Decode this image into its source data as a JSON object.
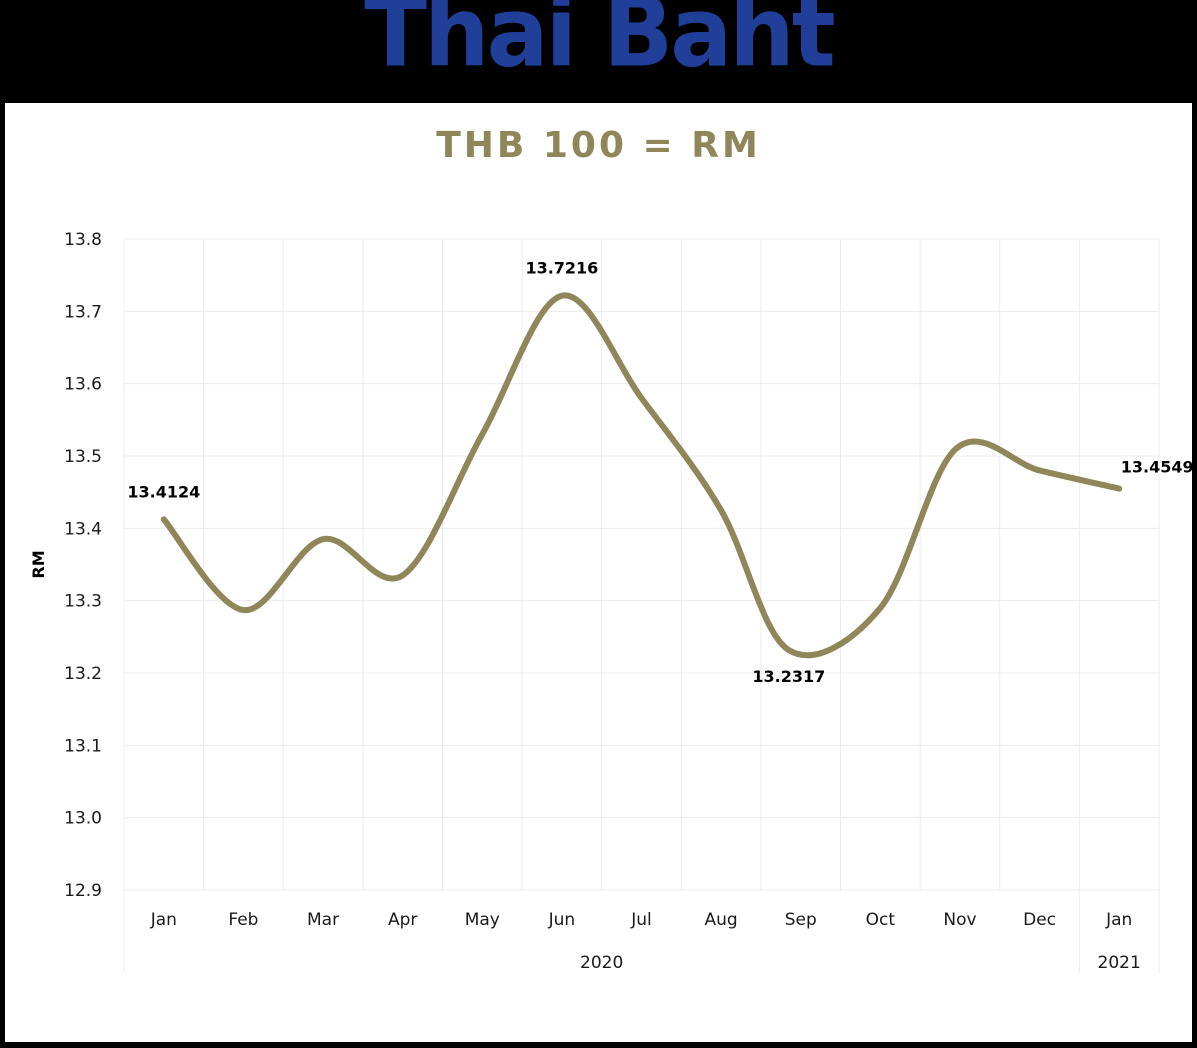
{
  "banner": {
    "title": "Thai Baht",
    "color": "#1f3f99"
  },
  "chart_data": {
    "type": "line",
    "title": "THB 100 = RM",
    "title_color": "#8f875a",
    "ylabel": "RM",
    "xlabel": "",
    "ylim": [
      12.9,
      13.8
    ],
    "yticks": [
      "12.9",
      "13.0",
      "13.1",
      "13.2",
      "13.3",
      "13.4",
      "13.5",
      "13.6",
      "13.7",
      "13.8"
    ],
    "categories": [
      "Jan",
      "Feb",
      "Mar",
      "Apr",
      "May",
      "Jun",
      "Jul",
      "Aug",
      "Sep",
      "Oct",
      "Nov",
      "Dec",
      "Jan"
    ],
    "year_groups": [
      {
        "label": "2020",
        "from": 0,
        "to": 11
      },
      {
        "label": "2021",
        "from": 12,
        "to": 12
      }
    ],
    "series": [
      {
        "color": "#8f875a",
        "smooth": true,
        "points": [
          {
            "x": 0.0,
            "y": 13.4124
          },
          {
            "x": 1.0,
            "y": 13.287
          },
          {
            "x": 2.0,
            "y": 13.385
          },
          {
            "x": 3.0,
            "y": 13.335
          },
          {
            "x": 4.0,
            "y": 13.53
          },
          {
            "x": 5.0,
            "y": 13.7216
          },
          {
            "x": 6.0,
            "y": 13.58
          },
          {
            "x": 7.0,
            "y": 13.425
          },
          {
            "x": 7.85,
            "y": 13.2317
          },
          {
            "x": 9.0,
            "y": 13.29
          },
          {
            "x": 9.95,
            "y": 13.51
          },
          {
            "x": 11.0,
            "y": 13.48
          },
          {
            "x": 12.0,
            "y": 13.4549
          }
        ]
      }
    ],
    "annotations": [
      {
        "text": "13.4124",
        "x": 0.0,
        "y": 13.4124,
        "position": "above"
      },
      {
        "text": "13.7216",
        "x": 5.0,
        "y": 13.7216,
        "position": "above"
      },
      {
        "text": "13.2317",
        "x": 7.85,
        "y": 13.2317,
        "position": "below"
      },
      {
        "text": "13.4549",
        "x": 12.0,
        "y": 13.4549,
        "position": "above-right"
      }
    ],
    "grid": true,
    "grid_color": "#ececec",
    "legend": "none"
  }
}
